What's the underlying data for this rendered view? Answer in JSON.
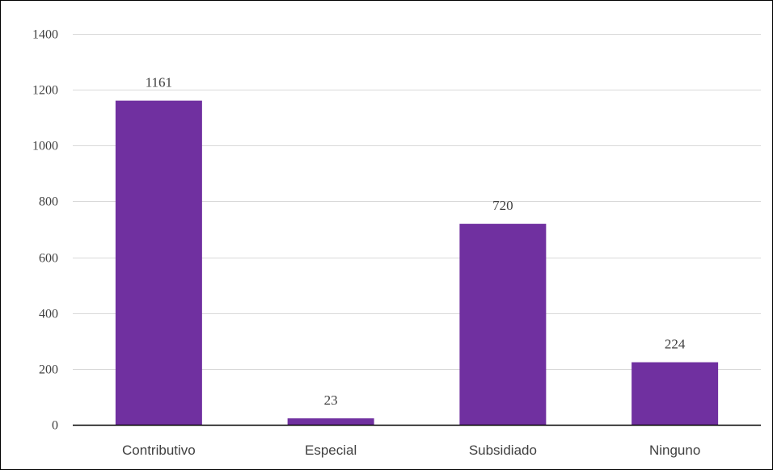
{
  "chart_data": {
    "type": "bar",
    "title": "",
    "xlabel": "",
    "ylabel": "",
    "categories": [
      "Contributivo",
      "Especial",
      "Subsidiado",
      "Ninguno"
    ],
    "values": [
      1161,
      23,
      720,
      224
    ],
    "data_labels": [
      "1161",
      "23",
      "720",
      "224"
    ],
    "ylim": [
      0,
      1400
    ],
    "yticks": [
      0,
      200,
      400,
      600,
      800,
      1000,
      1200,
      1400
    ],
    "grid": true,
    "legend": "none",
    "bar_color": "#7030A0",
    "grid_color": "#D9D9D9",
    "axis_color": "#000000",
    "text_color": "#404040"
  }
}
